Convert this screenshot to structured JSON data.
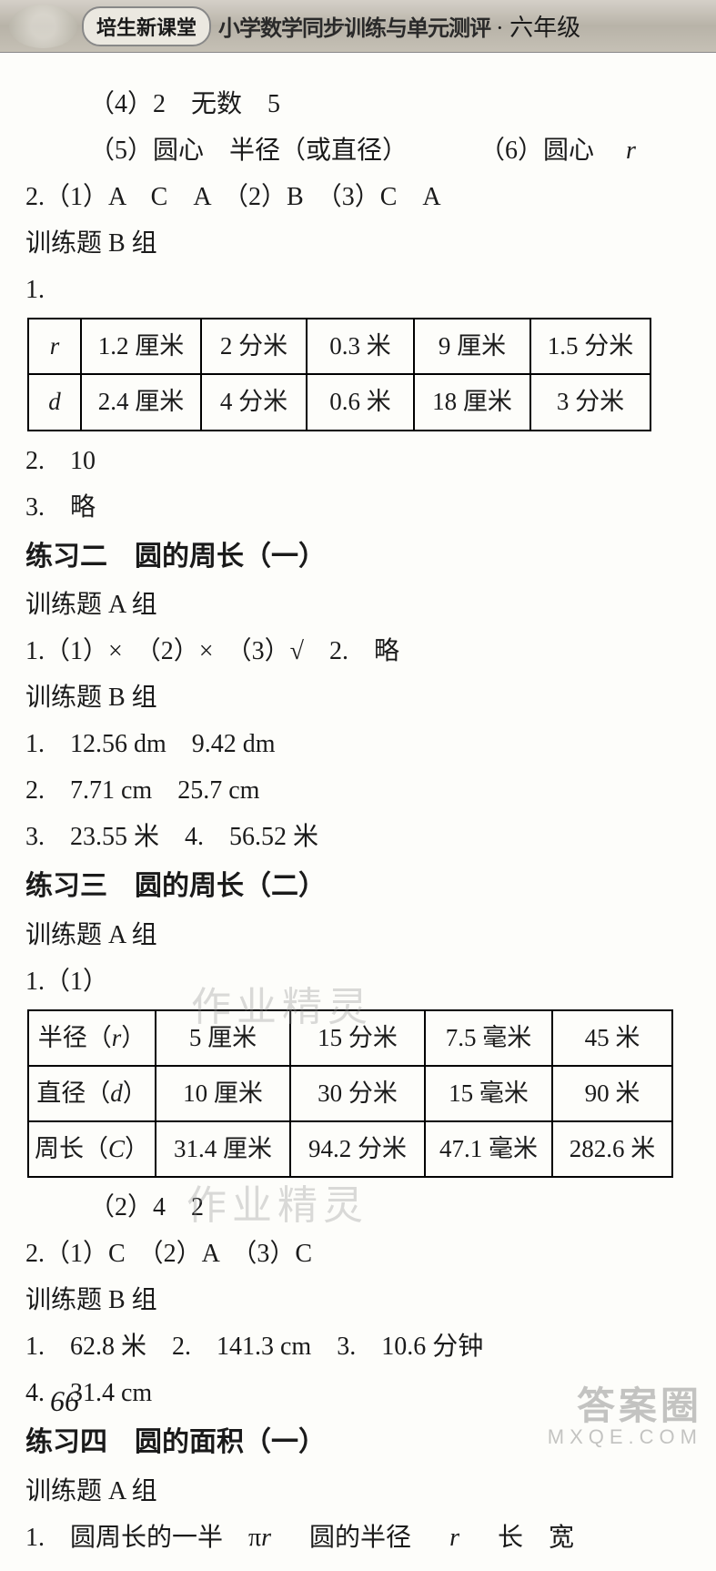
{
  "header": {
    "badge": "培生新课堂",
    "title": "小学数学同步训练与单元测评",
    "grade": "· 六年级"
  },
  "lines": {
    "l1": "（4）2　无数　5",
    "l2a": "（5）圆心　半径（或直径）",
    "l2b": "（6）圆心",
    "l2c": "r",
    "l3": "2.（1）A　C　A　（2）B　（3）C　A",
    "l4": "训练题 B 组",
    "l5": "1.",
    "l6": "2.　10",
    "l7": "3.　略",
    "sec2": "练习二　圆的周长（一）",
    "l8": "训练题 A 组",
    "l9": "1.（1）×　（2）×　（3）√　2.　略",
    "l10": "训练题 B 组",
    "l11": "1.　12.56 dm　9.42 dm",
    "l12": "2.　7.71 cm　25.7 cm",
    "l13": "3.　23.55 米　4.　56.52 米",
    "sec3": "练习三　圆的周长（二）",
    "l14": "训练题 A 组",
    "l15": "1.（1）",
    "l16": "（2）4　2",
    "l17": "2.（1）C　（2）A　（3）C",
    "l18": "训练题 B 组",
    "l19": "1.　62.8 米　2.　141.3 cm　3.　10.6 分钟",
    "l20": "4.　31.4 cm",
    "sec4": "练习四　圆的面积（一）",
    "l21": "训练题 A 组",
    "l22a": "1.　圆周长的一半　π",
    "l22b": "r",
    "l22c": "圆的半径",
    "l22d": "r",
    "l22e": "长　宽"
  },
  "table1": {
    "r1": [
      "r",
      "1.2 厘米",
      "2 分米",
      "0.3 米",
      "9 厘米",
      "1.5 分米"
    ],
    "r2": [
      "d",
      "2.4 厘米",
      "4 分米",
      "0.6 米",
      "18 厘米",
      "3 分米"
    ]
  },
  "table2": {
    "r1": [
      "半径（r）",
      "5 厘米",
      "15 分米",
      "7.5 毫米",
      "45 米"
    ],
    "r2": [
      "直径（d）",
      "10 厘米",
      "30 分米",
      "15 毫米",
      "90 米"
    ],
    "r3": [
      "周长（C）",
      "31.4 厘米",
      "94.2 分米",
      "47.1 毫米",
      "282.6 米"
    ]
  },
  "watermarks": {
    "w1": "作业精灵",
    "w2": "作业精灵"
  },
  "page_number": "66",
  "footer": {
    "cn": "答案圈",
    "en": "MXQE.COM"
  }
}
